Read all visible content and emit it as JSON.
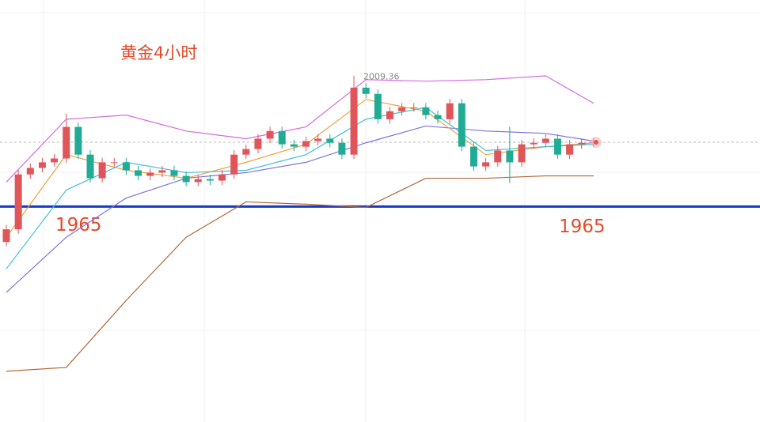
{
  "chart_data": {
    "type": "candlestick",
    "title": "黄金4小时",
    "high_label": "2009.36",
    "level": 1965,
    "level_color": "#1538c9",
    "up_color": "#e0555a",
    "down_color": "#22ab94",
    "ylim": [
      1892,
      2035
    ],
    "candles": {
      "open": [
        1953,
        1957.3,
        1975.9,
        1978.1,
        1980,
        1981.3,
        1992,
        1982.6,
        1974.6,
        1980,
        1980,
        1977.3,
        1975.4,
        1976.5,
        1977.3,
        1975.4,
        1973.3,
        1974.3,
        1973.8,
        1975.9,
        1982.6,
        1984.5,
        1988,
        1990.6,
        1986.1,
        1985.3,
        1987.2,
        1988,
        1986.6,
        1982.6,
        2005.3,
        2003.2,
        1994.6,
        1997.3,
        1998.6,
        1998.6,
        1996,
        1994.6,
        2000,
        1985.3,
        1978.6,
        1980,
        1984,
        1980,
        1986.1,
        1986.6,
        1988,
        1982.6,
        1986.1,
        1986.6
      ],
      "close": [
        1957.3,
        1975.9,
        1978.1,
        1980,
        1981.3,
        1992,
        1982.6,
        1974.6,
        1980,
        1980,
        1977.3,
        1975.4,
        1976.5,
        1977.3,
        1975.4,
        1973.3,
        1974.3,
        1973.8,
        1975.9,
        1982.6,
        1984.5,
        1988,
        1990.6,
        1986.1,
        1985.3,
        1987.2,
        1988,
        1986.6,
        1982.6,
        2005.3,
        2003.2,
        1994.6,
        1997.3,
        1998.6,
        1998.6,
        1996,
        1994.6,
        2000,
        1985.3,
        1978.6,
        1980,
        1984,
        1980,
        1986.1,
        1986.6,
        1988,
        1982.6,
        1986.1,
        1986.6,
        1986.8
      ],
      "high": [
        1958.8,
        1977.4,
        1979.6,
        1981.5,
        1982.8,
        1996.5,
        1993.5,
        1984.1,
        1981.5,
        1981.5,
        1981.5,
        1978.8,
        1977.9,
        1978.8,
        1978.8,
        1976.9,
        1975.8,
        1975.8,
        1977.4,
        1984.1,
        1986,
        1989.5,
        1992.1,
        1992.1,
        1987.6,
        1988.7,
        1989.5,
        1989.5,
        1988.1,
        2009.36,
        2006.8,
        2004.7,
        1998.8,
        2000.1,
        2000.1,
        2000.1,
        1997.5,
        2001.5,
        2001.5,
        1986.8,
        1981.5,
        1985.5,
        1992,
        1987.6,
        1988.1,
        1989.5,
        1989.5,
        1987.6,
        1988.1,
        1988.3
      ],
      "low": [
        1951.5,
        1955.8,
        1974.4,
        1976.6,
        1978.5,
        1979.8,
        1981.1,
        1973.1,
        1973.1,
        1978.5,
        1975.8,
        1973.9,
        1973.9,
        1975,
        1973.9,
        1971.8,
        1971.8,
        1972.3,
        1972.3,
        1974.4,
        1981.1,
        1983,
        1986.5,
        1984.6,
        1983.8,
        1983.8,
        1985.7,
        1985.1,
        1981.1,
        1981.1,
        2001.7,
        1993.1,
        1993.1,
        1995.8,
        1997.1,
        1994.5,
        1993.1,
        1993.1,
        1983.8,
        1977.1,
        1977.1,
        1978.5,
        1973,
        1978.5,
        1984.6,
        1985.1,
        1981.1,
        1981.1,
        1984.6,
        1985.1
      ]
    },
    "line_x": [
      0,
      5,
      10,
      15,
      20,
      25,
      30,
      35,
      40,
      45,
      49
    ],
    "lines": [
      {
        "color": "#d46be0",
        "values": [
          1973.3,
          1994.6,
          1996,
          1990.6,
          1988,
          1992,
          2008,
          2007.5,
          2008,
          2009.3,
          2000
        ]
      },
      {
        "color": "#b0673a",
        "values": [
          1909.2,
          1910.5,
          1933.2,
          1954.6,
          1966.6,
          1965.8,
          1964.7,
          1974.6,
          1974.6,
          1975.4,
          1975.4
        ]
      },
      {
        "color": "#7a74e0",
        "values": [
          1935.9,
          1954.6,
          1967.9,
          1974.6,
          1976.5,
          1980,
          1986.6,
          1992.3,
          1990.6,
          1989.8,
          1987.2
        ]
      },
      {
        "color": "#f0a040",
        "values": [
          1954.6,
          1982.6,
          1977.3,
          1974.6,
          1980,
          1986.1,
          2001.3,
          1997.3,
          1982.6,
          1985.3,
          1986.6
        ]
      },
      {
        "color": "#3fc0d8",
        "values": [
          1943.9,
          1970.6,
          1980,
          1976.5,
          1977.3,
          1982.6,
          1994.6,
          1998.6,
          1984,
          1985.3,
          1986.1
        ]
      }
    ]
  }
}
